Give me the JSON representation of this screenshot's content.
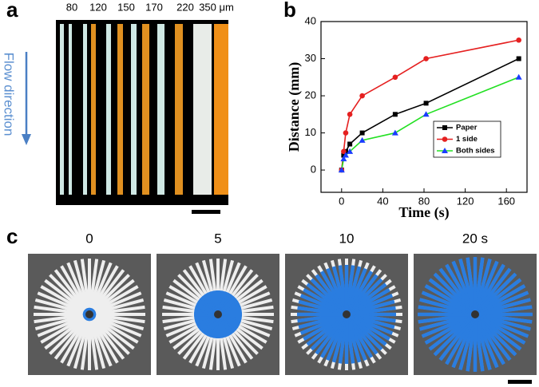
{
  "panels": {
    "a": {
      "label": "a",
      "widths": [
        "80",
        "120",
        "150",
        "170",
        "220",
        "350 μm"
      ],
      "arrow_label": "Flow direction"
    },
    "b": {
      "label": "b"
    },
    "c": {
      "label": "c",
      "times": [
        "0",
        "5",
        "10",
        "20 s"
      ]
    }
  },
  "chart_data": {
    "type": "line",
    "x_label": "Time (s)",
    "y_label": "Distance (mm)",
    "x": [
      0,
      2,
      4,
      8,
      20,
      52,
      82,
      172
    ],
    "series": [
      {
        "name": "Paper",
        "color": "#000000",
        "marker": "square",
        "marker_color": "#000000",
        "values": [
          0,
          4,
          5,
          7,
          10,
          15,
          18,
          30
        ]
      },
      {
        "name": "1 side",
        "color": "#e52020",
        "marker": "circle",
        "marker_color": "#e52020",
        "values": [
          0,
          5,
          10,
          15,
          20,
          25,
          30,
          35
        ]
      },
      {
        "name": "Both sides",
        "color": "#22e022",
        "marker": "triangle",
        "marker_color": "#1a3cff",
        "values": [
          0,
          3,
          4,
          5,
          8,
          10,
          15,
          25
        ]
      }
    ],
    "xlim": [
      -20,
      180
    ],
    "xticks": [
      0,
      40,
      80,
      120,
      160
    ],
    "ylim": [
      -6,
      40
    ],
    "yticks": [
      0,
      10,
      20,
      30,
      40
    ],
    "legend": "lower right"
  }
}
